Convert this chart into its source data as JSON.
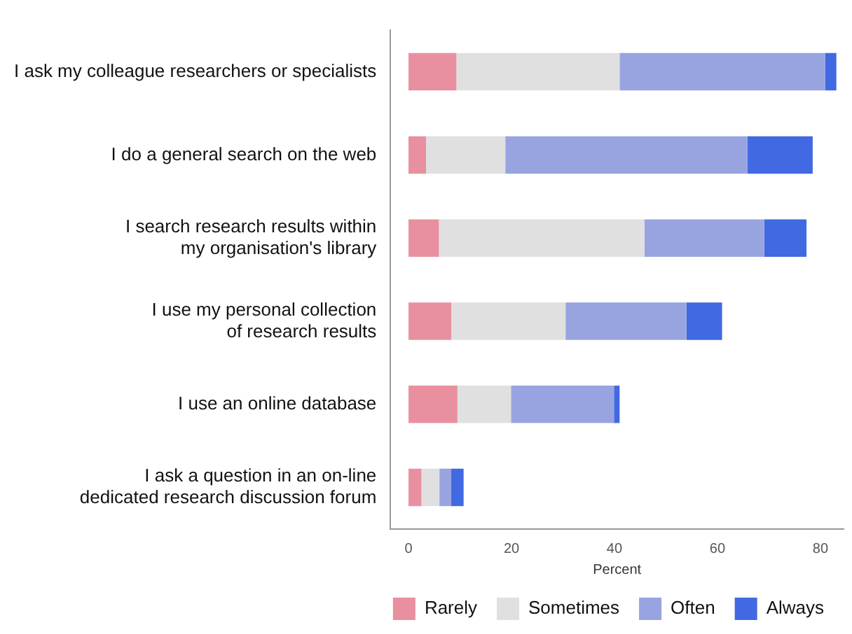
{
  "chart_data": {
    "type": "bar",
    "orientation": "horizontal",
    "stacked": true,
    "xlabel": "Percent",
    "categories": [
      "I ask my colleague researchers or specialists",
      "I do a general search on the web",
      "I search research results within\nmy organisation's library",
      "I use my personal collection\nof research results",
      "I use an online database",
      "I ask a question in an on-line\ndedicated research discussion forum"
    ],
    "series": [
      {
        "name": "Rarely",
        "color": "#e8909f",
        "values": [
          9.3,
          3.4,
          5.9,
          8.3,
          9.5,
          2.5
        ]
      },
      {
        "name": "Sometimes",
        "color": "#e0e0e0",
        "values": [
          31.7,
          15.4,
          39.9,
          22.2,
          10.4,
          3.5
        ]
      },
      {
        "name": "Often",
        "color": "#98a4e0",
        "values": [
          39.9,
          47.0,
          23.3,
          23.5,
          20.0,
          2.3
        ]
      },
      {
        "name": "Always",
        "color": "#4169e1",
        "values": [
          2.2,
          12.7,
          8.2,
          6.9,
          1.1,
          2.4
        ]
      }
    ],
    "xlim": [
      -3.5,
      84.5
    ],
    "xticks": [
      0,
      20,
      40,
      60,
      80
    ],
    "grid": false,
    "legend": "bottom"
  }
}
